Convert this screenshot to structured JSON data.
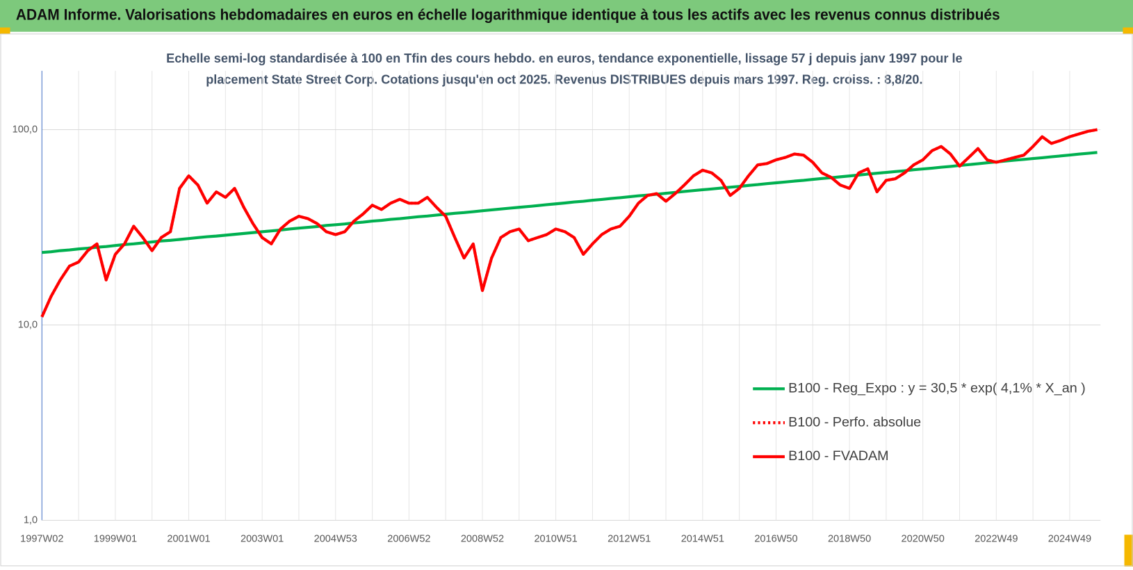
{
  "header": {
    "title": "ADAM Informe. Valorisations hebdomadaires en euros en échelle logarithmique identique à tous les actifs avec les revenus connus distribués"
  },
  "chart_data": {
    "type": "line",
    "subtitle": [
      "Echelle semi-log standardisée à 100 en Tfin des cours hebdo. en euros, tendance exponentielle, lissage 57 j depuis janv 1997 pour le",
      "placement State Street Corp. Cotations jusqu'en oct 2025. Revenus DISTRIBUES depuis mars 1997. Reg. croiss. : 8,8/20."
    ],
    "log_scale": true,
    "grid": true,
    "legend": "right",
    "ylim": [
      1,
      200
    ],
    "yticks": [
      {
        "value": 1,
        "label": "1,0"
      },
      {
        "value": 10,
        "label": "10,0"
      },
      {
        "value": 100,
        "label": "100,0"
      }
    ],
    "categories": [
      "1997W02",
      null,
      null,
      null,
      null,
      null,
      null,
      null,
      "1999W01",
      null,
      null,
      null,
      null,
      null,
      null,
      null,
      "2001W01",
      null,
      null,
      null,
      null,
      null,
      null,
      null,
      "2003W01",
      null,
      null,
      null,
      null,
      null,
      null,
      null,
      "2004W53",
      null,
      null,
      null,
      null,
      null,
      null,
      null,
      "2006W52",
      null,
      null,
      null,
      null,
      null,
      null,
      null,
      "2008W52",
      null,
      null,
      null,
      null,
      null,
      null,
      null,
      "2010W51",
      null,
      null,
      null,
      null,
      null,
      null,
      null,
      "2012W51",
      null,
      null,
      null,
      null,
      null,
      null,
      null,
      "2014W51",
      null,
      null,
      null,
      null,
      null,
      null,
      null,
      "2016W50",
      null,
      null,
      null,
      null,
      null,
      null,
      null,
      "2018W50",
      null,
      null,
      null,
      null,
      null,
      null,
      null,
      "2020W50",
      null,
      null,
      null,
      null,
      null,
      null,
      null,
      "2022W49",
      null,
      null,
      null,
      null,
      null,
      null,
      null,
      "2024W49",
      null,
      null,
      null
    ],
    "series": [
      {
        "name": "B100 - Reg_Expo : y = 30,5 * exp( 4,1% *  X_an )",
        "color": "#00b050",
        "dashed": false,
        "values": [
          23.5,
          23.7,
          24.0,
          24.2,
          24.5,
          24.7,
          25.0,
          25.2,
          25.5,
          25.8,
          26.0,
          26.3,
          26.6,
          26.9,
          27.1,
          27.4,
          27.7,
          28.0,
          28.3,
          28.5,
          28.8,
          29.1,
          29.4,
          29.7,
          30.0,
          30.3,
          30.6,
          31.0,
          31.3,
          31.6,
          31.9,
          32.3,
          32.6,
          32.9,
          33.3,
          33.6,
          34.0,
          34.3,
          34.7,
          35.0,
          35.4,
          35.8,
          36.1,
          36.5,
          36.9,
          37.3,
          37.6,
          38.0,
          38.4,
          38.8,
          39.2,
          39.6,
          40.0,
          40.4,
          40.8,
          41.3,
          41.7,
          42.1,
          42.6,
          43.0,
          43.5,
          43.9,
          44.4,
          44.8,
          45.3,
          45.8,
          46.2,
          46.7,
          47.2,
          47.7,
          48.2,
          48.7,
          49.2,
          49.7,
          50.2,
          50.7,
          51.2,
          51.8,
          52.3,
          52.9,
          53.4,
          53.9,
          54.5,
          55.0,
          55.6,
          56.2,
          56.7,
          57.3,
          57.9,
          58.5,
          59.2,
          59.8,
          60.4,
          61.0,
          61.6,
          62.3,
          62.9,
          63.5,
          64.2,
          64.8,
          65.5,
          66.2,
          66.9,
          67.6,
          68.3,
          69.0,
          69.7,
          70.4,
          71.1,
          71.8,
          72.6,
          73.3,
          74.1,
          74.9,
          75.6,
          76.4
        ]
      },
      {
        "name": "B100 - Perfo. absolue",
        "color": "#ff0000",
        "dashed": true,
        "values": [
          11,
          14,
          17,
          20,
          21,
          24,
          26,
          17,
          23,
          26,
          32,
          28,
          24,
          28,
          30,
          50,
          58,
          52,
          42,
          48,
          45,
          50,
          40,
          33,
          28,
          26,
          31,
          34,
          36,
          35,
          33,
          30,
          29,
          30,
          34,
          37,
          41,
          39,
          42,
          44,
          42,
          42,
          45,
          40,
          36,
          28,
          22,
          26,
          15,
          22,
          28,
          30,
          31,
          27,
          28,
          29,
          31,
          30,
          28,
          23,
          26,
          29,
          31,
          32,
          36,
          42,
          46,
          47,
          43,
          47,
          52,
          58,
          62,
          60,
          55,
          46,
          50,
          58,
          66,
          67,
          70,
          72,
          75,
          74,
          68,
          60,
          57,
          52,
          50,
          60,
          63,
          48,
          55,
          56,
          60,
          66,
          70,
          78,
          82,
          75,
          65,
          72,
          80,
          70,
          68,
          70,
          72,
          74,
          82,
          92,
          85,
          88,
          92,
          95,
          98,
          100
        ]
      },
      {
        "name": "B100 - FVADAM",
        "color": "#ff0000",
        "dashed": false,
        "values": [
          11,
          14,
          17,
          20,
          21,
          24,
          26,
          17,
          23,
          26,
          32,
          28,
          24,
          28,
          30,
          50,
          58,
          52,
          42,
          48,
          45,
          50,
          40,
          33,
          28,
          26,
          31,
          34,
          36,
          35,
          33,
          30,
          29,
          30,
          34,
          37,
          41,
          39,
          42,
          44,
          42,
          42,
          45,
          40,
          36,
          28,
          22,
          26,
          15,
          22,
          28,
          30,
          31,
          27,
          28,
          29,
          31,
          30,
          28,
          23,
          26,
          29,
          31,
          32,
          36,
          42,
          46,
          47,
          43,
          47,
          52,
          58,
          62,
          60,
          55,
          46,
          50,
          58,
          66,
          67,
          70,
          72,
          75,
          74,
          68,
          60,
          57,
          52,
          50,
          60,
          63,
          48,
          55,
          56,
          60,
          66,
          70,
          78,
          82,
          75,
          65,
          72,
          80,
          70,
          68,
          70,
          72,
          74,
          82,
          92,
          85,
          88,
          92,
          95,
          98,
          100
        ]
      }
    ]
  }
}
